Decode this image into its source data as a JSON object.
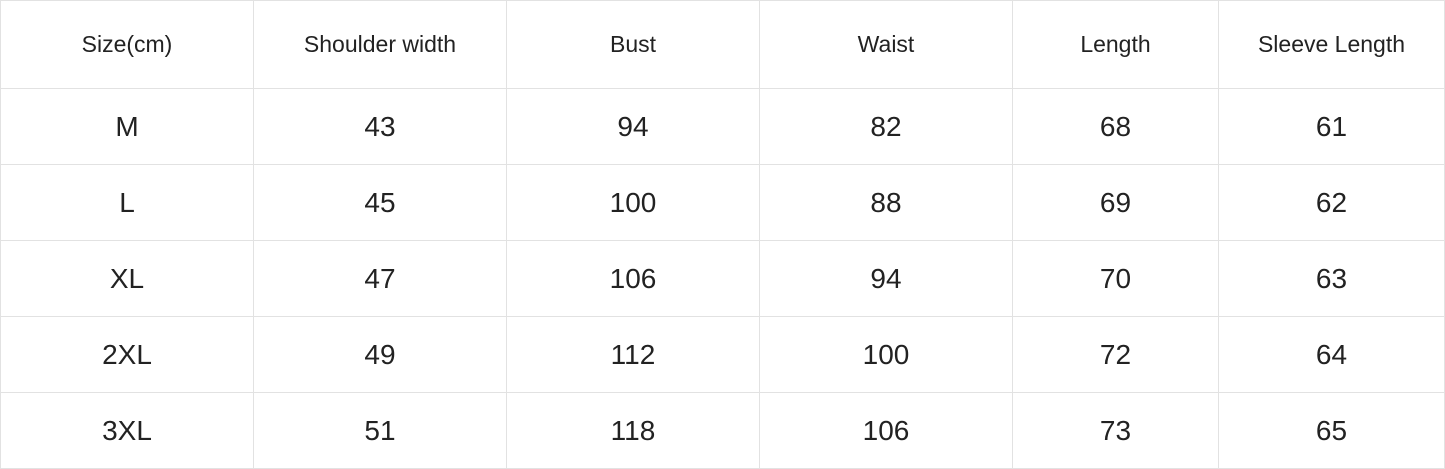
{
  "table": {
    "header": [
      "Size(cm)",
      "Shoulder width",
      "Bust",
      "Waist",
      "Length",
      "Sleeve Length"
    ],
    "rows": [
      [
        "M",
        43,
        94,
        82,
        68,
        61
      ],
      [
        "L",
        45,
        100,
        88,
        69,
        62
      ],
      [
        "XL",
        47,
        106,
        94,
        70,
        63
      ],
      [
        "2XL",
        49,
        112,
        100,
        72,
        64
      ],
      [
        "3XL",
        51,
        118,
        106,
        73,
        65
      ]
    ]
  }
}
